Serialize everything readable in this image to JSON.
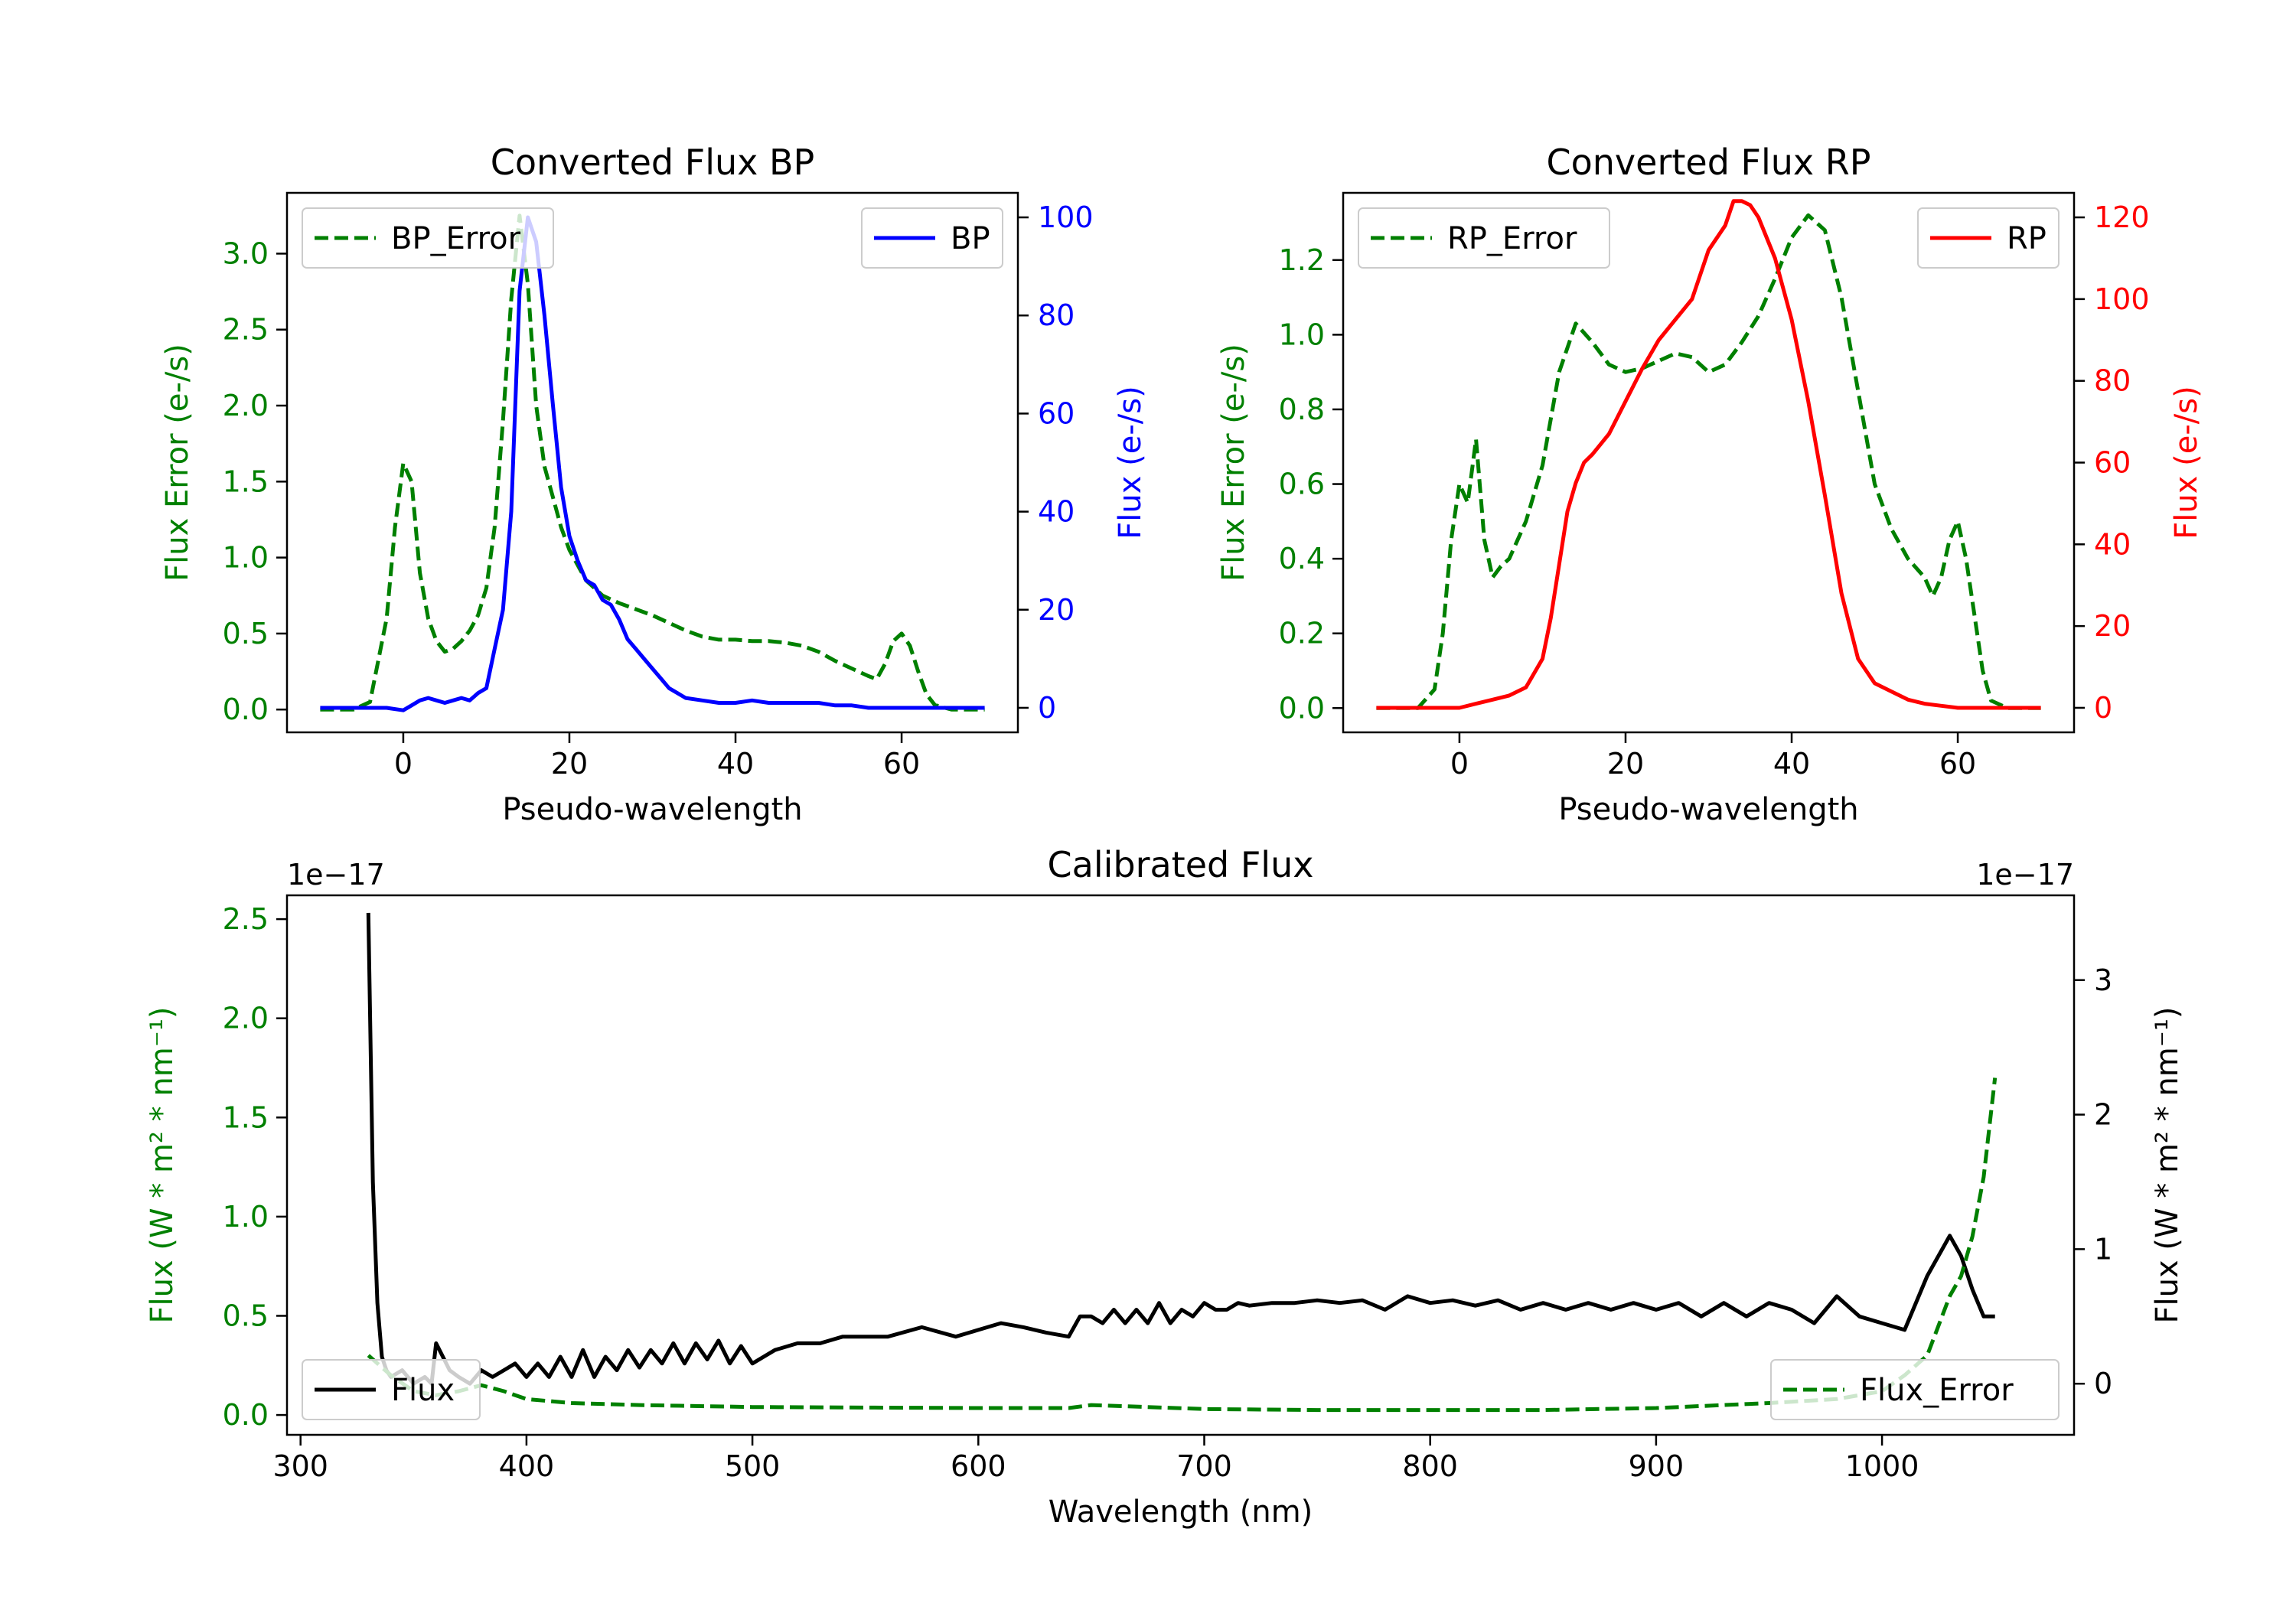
{
  "chart_data": [
    {
      "type": "line",
      "title": "Converted Flux BP",
      "xlabel": "Pseudo-wavelength",
      "ylabel_left": "Flux Error (e-/s)",
      "ylabel_right": "Flux (e-/s)",
      "xlim": [
        -14,
        74
      ],
      "ylim_left": [
        -0.15,
        3.4
      ],
      "ylim_right": [
        -5,
        105
      ],
      "xticks": [
        0,
        20,
        40,
        60
      ],
      "yticks_left": [
        0.0,
        0.5,
        1.0,
        1.5,
        2.0,
        2.5,
        3.0
      ],
      "yticks_right": [
        0,
        20,
        40,
        60,
        80,
        100
      ],
      "colors": {
        "left_axis": "#008000",
        "right_axis": "#0000ff",
        "error": "#008000",
        "flux": "#0000ff"
      },
      "legend_left": "BP_Error",
      "legend_right": "BP",
      "series": [
        {
          "name": "BP_Error",
          "axis": "left",
          "style": "dashed",
          "x": [
            -10,
            -6,
            -4,
            -2,
            -1,
            0,
            1,
            2,
            3,
            4,
            5,
            6,
            7,
            8,
            9,
            10,
            11,
            12,
            13,
            14,
            15,
            16,
            17,
            18,
            19,
            20,
            22,
            24,
            26,
            28,
            30,
            32,
            34,
            36,
            38,
            40,
            42,
            44,
            46,
            48,
            50,
            52,
            54,
            56,
            57,
            58,
            59,
            60,
            61,
            62,
            63,
            64,
            66,
            68,
            70
          ],
          "y": [
            0.0,
            0.0,
            0.05,
            0.6,
            1.2,
            1.62,
            1.5,
            0.9,
            0.6,
            0.45,
            0.38,
            0.4,
            0.45,
            0.52,
            0.62,
            0.8,
            1.2,
            1.9,
            2.7,
            3.25,
            2.8,
            2.0,
            1.6,
            1.4,
            1.2,
            1.05,
            0.85,
            0.75,
            0.7,
            0.66,
            0.62,
            0.57,
            0.52,
            0.48,
            0.46,
            0.46,
            0.45,
            0.45,
            0.44,
            0.42,
            0.38,
            0.32,
            0.27,
            0.22,
            0.2,
            0.3,
            0.45,
            0.5,
            0.42,
            0.25,
            0.1,
            0.03,
            0.0,
            0.0,
            0.0
          ]
        },
        {
          "name": "BP",
          "axis": "right",
          "style": "solid",
          "x": [
            -10,
            -4,
            -2,
            0,
            1,
            2,
            3,
            4,
            5,
            6,
            7,
            8,
            9,
            10,
            11,
            12,
            13,
            14,
            15,
            16,
            17,
            18,
            19,
            20,
            21,
            22,
            23,
            24,
            25,
            26,
            27,
            28,
            29,
            30,
            31,
            32,
            33,
            34,
            36,
            38,
            40,
            42,
            44,
            46,
            48,
            50,
            52,
            54,
            56,
            58,
            60,
            62,
            64,
            66,
            68,
            70
          ],
          "y": [
            0,
            0,
            0,
            -0.5,
            0.5,
            1.5,
            2,
            1.5,
            1,
            1.5,
            2,
            1.5,
            3,
            4,
            12,
            20,
            40,
            85,
            100,
            95,
            80,
            62,
            45,
            35,
            30,
            26,
            25,
            22,
            21,
            18,
            14,
            12,
            10,
            8,
            6,
            4,
            3,
            2,
            1.5,
            1,
            1,
            1.5,
            1,
            1,
            1,
            1,
            0.5,
            0.5,
            0,
            0,
            0,
            0,
            0,
            0,
            0,
            0
          ]
        }
      ]
    },
    {
      "type": "line",
      "title": "Converted Flux RP",
      "xlabel": "Pseudo-wavelength",
      "ylabel_left": "Flux Error (e-/s)",
      "ylabel_right": "Flux (e-/s)",
      "xlim": [
        -14,
        74
      ],
      "ylim_left": [
        -0.065,
        1.38
      ],
      "ylim_right": [
        -6,
        126
      ],
      "xticks": [
        0,
        20,
        40,
        60
      ],
      "yticks_left": [
        0.0,
        0.2,
        0.4,
        0.6,
        0.8,
        1.0,
        1.2
      ],
      "yticks_right": [
        0,
        20,
        40,
        60,
        80,
        100,
        120
      ],
      "colors": {
        "left_axis": "#008000",
        "right_axis": "#ff0000",
        "error": "#008000",
        "flux": "#ff0000"
      },
      "legend_left": "RP_Error",
      "legend_right": "RP",
      "series": [
        {
          "name": "RP_Error",
          "axis": "left",
          "style": "dashed",
          "x": [
            -10,
            -5,
            -3,
            -2,
            -1,
            0,
            1,
            2,
            3,
            4,
            5,
            6,
            7,
            8,
            10,
            12,
            14,
            16,
            18,
            20,
            22,
            24,
            26,
            28,
            30,
            32,
            34,
            36,
            38,
            40,
            42,
            44,
            46,
            48,
            50,
            52,
            54,
            56,
            57,
            58,
            59,
            60,
            61,
            62,
            63,
            64,
            66,
            68,
            70
          ],
          "y": [
            0.0,
            0.0,
            0.05,
            0.2,
            0.45,
            0.6,
            0.55,
            0.72,
            0.45,
            0.35,
            0.38,
            0.4,
            0.45,
            0.5,
            0.65,
            0.9,
            1.03,
            0.98,
            0.92,
            0.9,
            0.91,
            0.93,
            0.95,
            0.94,
            0.9,
            0.92,
            0.98,
            1.05,
            1.15,
            1.26,
            1.32,
            1.28,
            1.1,
            0.85,
            0.6,
            0.48,
            0.4,
            0.35,
            0.3,
            0.35,
            0.45,
            0.5,
            0.4,
            0.25,
            0.1,
            0.02,
            0.0,
            0.0,
            0.0
          ]
        },
        {
          "name": "RP",
          "axis": "right",
          "style": "solid",
          "x": [
            -10,
            -4,
            0,
            2,
            4,
            6,
            8,
            10,
            11,
            12,
            13,
            14,
            15,
            16,
            18,
            20,
            22,
            24,
            26,
            28,
            30,
            32,
            33,
            34,
            35,
            36,
            38,
            40,
            42,
            44,
            46,
            48,
            50,
            52,
            54,
            56,
            58,
            60,
            62,
            64,
            66,
            68,
            70
          ],
          "y": [
            0,
            0,
            0,
            1,
            2,
            3,
            5,
            12,
            22,
            35,
            48,
            55,
            60,
            62,
            67,
            75,
            83,
            90,
            95,
            100,
            112,
            118,
            124,
            124,
            123,
            120,
            110,
            95,
            75,
            52,
            28,
            12,
            6,
            4,
            2,
            1,
            0.5,
            0,
            0,
            0,
            0,
            0,
            0
          ]
        }
      ]
    },
    {
      "type": "line",
      "title": "Calibrated Flux",
      "xlabel": "Wavelength (nm)",
      "ylabel_left": "Flux (W * m² * nm⁻¹)",
      "ylabel_right": "Flux (W * m² * nm⁻¹)",
      "offset_left": "1e−17",
      "offset_right": "1e−17",
      "xlim": [
        294,
        1085
      ],
      "ylim_left": [
        -0.1,
        2.62
      ],
      "ylim_right": [
        -0.38,
        3.63
      ],
      "xticks": [
        300,
        400,
        500,
        600,
        700,
        800,
        900,
        1000
      ],
      "yticks_left": [
        0.0,
        0.5,
        1.0,
        1.5,
        2.0,
        2.5
      ],
      "yticks_right": [
        0,
        1,
        2,
        3
      ],
      "colors": {
        "left_axis": "#008000",
        "right_axis": "#000000",
        "error": "#008000",
        "flux": "#000000"
      },
      "legend_left": "Flux",
      "legend_right": "Flux_Error",
      "series": [
        {
          "name": "Flux",
          "axis": "right",
          "style": "solid",
          "x": [
            330,
            332,
            334,
            336,
            338,
            340,
            345,
            350,
            355,
            358,
            360,
            363,
            366,
            370,
            375,
            380,
            385,
            390,
            395,
            400,
            405,
            410,
            415,
            420,
            425,
            430,
            435,
            440,
            445,
            450,
            455,
            460,
            465,
            470,
            475,
            480,
            485,
            490,
            495,
            500,
            510,
            520,
            530,
            540,
            550,
            560,
            575,
            590,
            600,
            610,
            620,
            630,
            640,
            645,
            650,
            655,
            660,
            665,
            670,
            675,
            680,
            685,
            690,
            695,
            700,
            705,
            710,
            715,
            720,
            730,
            740,
            750,
            760,
            770,
            780,
            790,
            800,
            810,
            820,
            830,
            840,
            850,
            860,
            870,
            880,
            890,
            900,
            910,
            920,
            930,
            940,
            950,
            960,
            970,
            980,
            990,
            1000,
            1010,
            1020,
            1030,
            1035,
            1040,
            1045,
            1050
          ],
          "y": [
            3.5,
            1.5,
            0.6,
            0.2,
            0.1,
            0.05,
            0.1,
            0.0,
            0.05,
            0.0,
            0.3,
            0.2,
            0.1,
            0.05,
            0.0,
            0.1,
            0.05,
            0.1,
            0.15,
            0.05,
            0.15,
            0.05,
            0.2,
            0.05,
            0.25,
            0.05,
            0.2,
            0.1,
            0.25,
            0.12,
            0.25,
            0.15,
            0.3,
            0.15,
            0.3,
            0.18,
            0.32,
            0.15,
            0.28,
            0.15,
            0.25,
            0.3,
            0.3,
            0.35,
            0.35,
            0.35,
            0.42,
            0.35,
            0.4,
            0.45,
            0.42,
            0.38,
            0.35,
            0.5,
            0.5,
            0.45,
            0.55,
            0.45,
            0.55,
            0.45,
            0.6,
            0.45,
            0.55,
            0.5,
            0.6,
            0.55,
            0.55,
            0.6,
            0.58,
            0.6,
            0.6,
            0.62,
            0.6,
            0.62,
            0.55,
            0.65,
            0.6,
            0.62,
            0.58,
            0.62,
            0.55,
            0.6,
            0.55,
            0.6,
            0.55,
            0.6,
            0.55,
            0.6,
            0.5,
            0.6,
            0.5,
            0.6,
            0.55,
            0.45,
            0.65,
            0.5,
            0.45,
            0.4,
            0.8,
            1.1,
            0.95,
            0.7,
            0.5,
            0.5
          ]
        },
        {
          "name": "Flux_Error",
          "axis": "left",
          "style": "dashed",
          "x": [
            330,
            340,
            350,
            360,
            370,
            380,
            390,
            400,
            420,
            450,
            500,
            600,
            640,
            650,
            700,
            750,
            800,
            850,
            900,
            950,
            980,
            1000,
            1010,
            1020,
            1025,
            1030,
            1035,
            1040,
            1045,
            1050
          ],
          "y": [
            0.3,
            0.2,
            0.12,
            0.1,
            0.12,
            0.15,
            0.12,
            0.08,
            0.06,
            0.05,
            0.04,
            0.035,
            0.035,
            0.05,
            0.03,
            0.025,
            0.025,
            0.025,
            0.035,
            0.06,
            0.08,
            0.12,
            0.2,
            0.3,
            0.45,
            0.6,
            0.7,
            0.9,
            1.2,
            1.7
          ]
        }
      ]
    }
  ]
}
